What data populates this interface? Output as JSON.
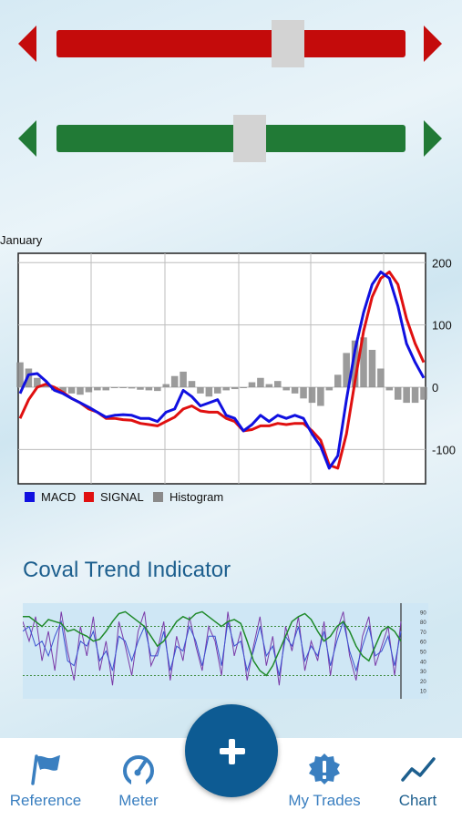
{
  "colors": {
    "red": "#c40b0b",
    "green": "#217a36",
    "macd": "#1010e0",
    "signal": "#e01010",
    "histogram": "#8a8a8a",
    "title_blue": "#1d5f8e",
    "nav_blue": "#3a7fc0",
    "nav_dark": "#1d5f8e",
    "fab": "#0d5b93"
  },
  "sliders": {
    "red": {
      "level": 0.68
    },
    "green": {
      "level": 0.56
    }
  },
  "macd_chart": {
    "period_label": "January",
    "legend": {
      "macd": "MACD",
      "signal": "SIGNAL",
      "histogram": "Histogram"
    }
  },
  "chart_data": [
    {
      "type": "line",
      "y_ticks": [
        "200",
        "100",
        "0",
        "-100"
      ],
      "ylim": [
        -155,
        215
      ],
      "grid": true,
      "legend_position": "bottom-left",
      "series": [
        {
          "name": "MACD",
          "values": [
            -10,
            20,
            22,
            10,
            -5,
            -10,
            -18,
            -25,
            -32,
            -40,
            -48,
            -45,
            -44,
            -45,
            -50,
            -50,
            -55,
            -40,
            -35,
            -5,
            -15,
            -30,
            -25,
            -20,
            -45,
            -50,
            -70,
            -60,
            -45,
            -55,
            -45,
            -50,
            -45,
            -50,
            -75,
            -95,
            -130,
            -110,
            -20,
            60,
            120,
            165,
            185,
            175,
            130,
            70,
            40,
            15
          ]
        },
        {
          "name": "SIGNAL",
          "values": [
            -50,
            -20,
            0,
            5,
            0,
            -8,
            -18,
            -25,
            -35,
            -40,
            -50,
            -50,
            -52,
            -53,
            -58,
            -60,
            -62,
            -55,
            -48,
            -35,
            -30,
            -38,
            -40,
            -40,
            -50,
            -55,
            -70,
            -68,
            -62,
            -62,
            -58,
            -60,
            -58,
            -58,
            -70,
            -85,
            -125,
            -130,
            -75,
            10,
            90,
            145,
            175,
            185,
            165,
            110,
            70,
            40
          ]
        },
        {
          "name": "Histogram",
          "values": [
            40,
            30,
            15,
            5,
            -5,
            -8,
            -10,
            -12,
            -8,
            -5,
            -5,
            0,
            0,
            -2,
            -4,
            -5,
            -6,
            5,
            18,
            25,
            10,
            -10,
            -15,
            -10,
            -5,
            -3,
            0,
            8,
            15,
            5,
            10,
            -5,
            -10,
            -18,
            -25,
            -30,
            -5,
            20,
            55,
            75,
            80,
            60,
            30,
            -5,
            -20,
            -25,
            -25,
            -20
          ]
        }
      ]
    },
    {
      "type": "line",
      "title": "Coval Trend Indicator",
      "y_ticks": [
        "90",
        "80",
        "70",
        "60",
        "50",
        "40",
        "30",
        "20",
        "10"
      ],
      "ylim": [
        5,
        95
      ],
      "grid": false,
      "legend_position": "none",
      "series": [
        {
          "values": [
            80,
            60,
            85,
            40,
            70,
            30,
            90,
            50,
            20,
            75,
            45,
            85,
            30,
            60,
            15,
            80,
            55,
            25,
            70,
            90,
            35,
            50,
            80,
            20,
            65,
            40,
            85,
            55,
            30,
            75,
            60,
            25,
            90,
            45,
            70,
            20,
            55,
            85,
            35,
            65,
            15,
            75,
            50,
            85,
            30,
            60,
            40,
            80,
            25,
            70,
            90,
            45,
            20,
            65,
            85,
            35,
            55,
            75,
            25,
            80
          ]
        },
        {
          "values": [
            70,
            75,
            55,
            60,
            45,
            65,
            80,
            40,
            35,
            60,
            55,
            70,
            40,
            50,
            30,
            65,
            60,
            40,
            60,
            75,
            45,
            45,
            70,
            30,
            55,
            50,
            75,
            60,
            35,
            65,
            65,
            35,
            80,
            55,
            60,
            30,
            50,
            75,
            45,
            55,
            25,
            65,
            55,
            75,
            40,
            55,
            45,
            70,
            35,
            60,
            80,
            50,
            30,
            55,
            75,
            45,
            50,
            65,
            35,
            70
          ]
        },
        {
          "values": [
            85,
            85,
            80,
            75,
            82,
            80,
            78,
            70,
            72,
            68,
            65,
            60,
            62,
            70,
            80,
            88,
            90,
            85,
            80,
            75,
            65,
            55,
            60,
            70,
            80,
            85,
            82,
            88,
            90,
            85,
            80,
            75,
            80,
            82,
            78,
            60,
            40,
            30,
            25,
            35,
            50,
            65,
            80,
            85,
            88,
            82,
            70,
            60,
            65,
            75,
            80,
            70,
            55,
            45,
            40,
            55,
            70,
            75,
            70,
            60
          ]
        }
      ]
    }
  ],
  "nav": {
    "items": [
      {
        "label": "Reference",
        "icon": "flag-icon"
      },
      {
        "label": "Meter",
        "icon": "gauge-icon"
      },
      {
        "label": "My Trades",
        "icon": "alert-badge-icon"
      },
      {
        "label": "Chart",
        "icon": "line-chart-icon"
      }
    ],
    "fab_icon": "plus-icon"
  }
}
